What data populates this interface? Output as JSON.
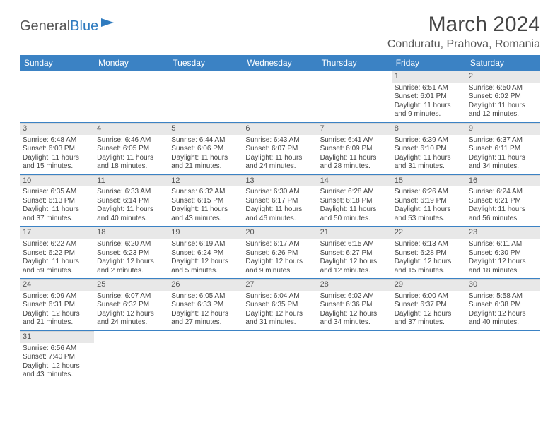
{
  "logo": {
    "text1": "General",
    "text2": "Blue"
  },
  "title": "March 2024",
  "location": "Conduratu, Prahova, Romania",
  "colors": {
    "header_bg": "#3b82c4",
    "header_text": "#ffffff",
    "daynum_bg": "#e8e8e8",
    "border": "#3b82c4",
    "text": "#444444"
  },
  "day_names": [
    "Sunday",
    "Monday",
    "Tuesday",
    "Wednesday",
    "Thursday",
    "Friday",
    "Saturday"
  ],
  "weeks": [
    [
      null,
      null,
      null,
      null,
      null,
      {
        "n": "1",
        "rise": "Sunrise: 6:51 AM",
        "set": "Sunset: 6:01 PM",
        "d1": "Daylight: 11 hours",
        "d2": "and 9 minutes."
      },
      {
        "n": "2",
        "rise": "Sunrise: 6:50 AM",
        "set": "Sunset: 6:02 PM",
        "d1": "Daylight: 11 hours",
        "d2": "and 12 minutes."
      }
    ],
    [
      {
        "n": "3",
        "rise": "Sunrise: 6:48 AM",
        "set": "Sunset: 6:03 PM",
        "d1": "Daylight: 11 hours",
        "d2": "and 15 minutes."
      },
      {
        "n": "4",
        "rise": "Sunrise: 6:46 AM",
        "set": "Sunset: 6:05 PM",
        "d1": "Daylight: 11 hours",
        "d2": "and 18 minutes."
      },
      {
        "n": "5",
        "rise": "Sunrise: 6:44 AM",
        "set": "Sunset: 6:06 PM",
        "d1": "Daylight: 11 hours",
        "d2": "and 21 minutes."
      },
      {
        "n": "6",
        "rise": "Sunrise: 6:43 AM",
        "set": "Sunset: 6:07 PM",
        "d1": "Daylight: 11 hours",
        "d2": "and 24 minutes."
      },
      {
        "n": "7",
        "rise": "Sunrise: 6:41 AM",
        "set": "Sunset: 6:09 PM",
        "d1": "Daylight: 11 hours",
        "d2": "and 28 minutes."
      },
      {
        "n": "8",
        "rise": "Sunrise: 6:39 AM",
        "set": "Sunset: 6:10 PM",
        "d1": "Daylight: 11 hours",
        "d2": "and 31 minutes."
      },
      {
        "n": "9",
        "rise": "Sunrise: 6:37 AM",
        "set": "Sunset: 6:11 PM",
        "d1": "Daylight: 11 hours",
        "d2": "and 34 minutes."
      }
    ],
    [
      {
        "n": "10",
        "rise": "Sunrise: 6:35 AM",
        "set": "Sunset: 6:13 PM",
        "d1": "Daylight: 11 hours",
        "d2": "and 37 minutes."
      },
      {
        "n": "11",
        "rise": "Sunrise: 6:33 AM",
        "set": "Sunset: 6:14 PM",
        "d1": "Daylight: 11 hours",
        "d2": "and 40 minutes."
      },
      {
        "n": "12",
        "rise": "Sunrise: 6:32 AM",
        "set": "Sunset: 6:15 PM",
        "d1": "Daylight: 11 hours",
        "d2": "and 43 minutes."
      },
      {
        "n": "13",
        "rise": "Sunrise: 6:30 AM",
        "set": "Sunset: 6:17 PM",
        "d1": "Daylight: 11 hours",
        "d2": "and 46 minutes."
      },
      {
        "n": "14",
        "rise": "Sunrise: 6:28 AM",
        "set": "Sunset: 6:18 PM",
        "d1": "Daylight: 11 hours",
        "d2": "and 50 minutes."
      },
      {
        "n": "15",
        "rise": "Sunrise: 6:26 AM",
        "set": "Sunset: 6:19 PM",
        "d1": "Daylight: 11 hours",
        "d2": "and 53 minutes."
      },
      {
        "n": "16",
        "rise": "Sunrise: 6:24 AM",
        "set": "Sunset: 6:21 PM",
        "d1": "Daylight: 11 hours",
        "d2": "and 56 minutes."
      }
    ],
    [
      {
        "n": "17",
        "rise": "Sunrise: 6:22 AM",
        "set": "Sunset: 6:22 PM",
        "d1": "Daylight: 11 hours",
        "d2": "and 59 minutes."
      },
      {
        "n": "18",
        "rise": "Sunrise: 6:20 AM",
        "set": "Sunset: 6:23 PM",
        "d1": "Daylight: 12 hours",
        "d2": "and 2 minutes."
      },
      {
        "n": "19",
        "rise": "Sunrise: 6:19 AM",
        "set": "Sunset: 6:24 PM",
        "d1": "Daylight: 12 hours",
        "d2": "and 5 minutes."
      },
      {
        "n": "20",
        "rise": "Sunrise: 6:17 AM",
        "set": "Sunset: 6:26 PM",
        "d1": "Daylight: 12 hours",
        "d2": "and 9 minutes."
      },
      {
        "n": "21",
        "rise": "Sunrise: 6:15 AM",
        "set": "Sunset: 6:27 PM",
        "d1": "Daylight: 12 hours",
        "d2": "and 12 minutes."
      },
      {
        "n": "22",
        "rise": "Sunrise: 6:13 AM",
        "set": "Sunset: 6:28 PM",
        "d1": "Daylight: 12 hours",
        "d2": "and 15 minutes."
      },
      {
        "n": "23",
        "rise": "Sunrise: 6:11 AM",
        "set": "Sunset: 6:30 PM",
        "d1": "Daylight: 12 hours",
        "d2": "and 18 minutes."
      }
    ],
    [
      {
        "n": "24",
        "rise": "Sunrise: 6:09 AM",
        "set": "Sunset: 6:31 PM",
        "d1": "Daylight: 12 hours",
        "d2": "and 21 minutes."
      },
      {
        "n": "25",
        "rise": "Sunrise: 6:07 AM",
        "set": "Sunset: 6:32 PM",
        "d1": "Daylight: 12 hours",
        "d2": "and 24 minutes."
      },
      {
        "n": "26",
        "rise": "Sunrise: 6:05 AM",
        "set": "Sunset: 6:33 PM",
        "d1": "Daylight: 12 hours",
        "d2": "and 27 minutes."
      },
      {
        "n": "27",
        "rise": "Sunrise: 6:04 AM",
        "set": "Sunset: 6:35 PM",
        "d1": "Daylight: 12 hours",
        "d2": "and 31 minutes."
      },
      {
        "n": "28",
        "rise": "Sunrise: 6:02 AM",
        "set": "Sunset: 6:36 PM",
        "d1": "Daylight: 12 hours",
        "d2": "and 34 minutes."
      },
      {
        "n": "29",
        "rise": "Sunrise: 6:00 AM",
        "set": "Sunset: 6:37 PM",
        "d1": "Daylight: 12 hours",
        "d2": "and 37 minutes."
      },
      {
        "n": "30",
        "rise": "Sunrise: 5:58 AM",
        "set": "Sunset: 6:38 PM",
        "d1": "Daylight: 12 hours",
        "d2": "and 40 minutes."
      }
    ],
    [
      {
        "n": "31",
        "rise": "Sunrise: 6:56 AM",
        "set": "Sunset: 7:40 PM",
        "d1": "Daylight: 12 hours",
        "d2": "and 43 minutes."
      },
      null,
      null,
      null,
      null,
      null,
      null
    ]
  ]
}
